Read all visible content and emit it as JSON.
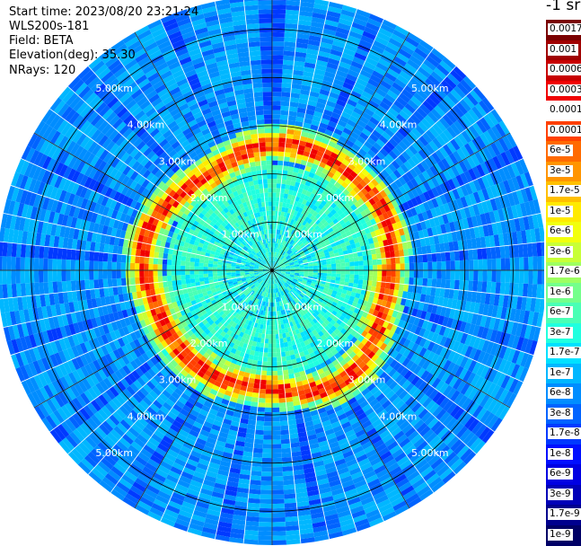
{
  "header": {
    "start_time": "Start time: 2023/08/20 23:21:24",
    "instrument": "WLS200s-181",
    "field": "Field: BETA",
    "elevation": "Elevation(deg): 35.30",
    "nrays": "NRays: 120"
  },
  "colorbar": {
    "unit_label": "-1 sr",
    "ticks": [
      "0.0017",
      "0.001",
      "0.0006",
      "0.0003",
      "0.00017",
      "0.0001",
      "6e-5",
      "3e-5",
      "1.7e-5",
      "1e-5",
      "6e-6",
      "3e-6",
      "1.7e-6",
      "1e-6",
      "6e-7",
      "3e-7",
      "1.7e-7",
      "1e-7",
      "6e-8",
      "3e-8",
      "1.7e-8",
      "1e-8",
      "6e-9",
      "3e-9",
      "1.7e-9",
      "1e-9"
    ],
    "colors": [
      "#7a0000",
      "#a00000",
      "#c80000",
      "#f00000",
      "#ffffff",
      "#ff4000",
      "#ff6a00",
      "#ff9500",
      "#ffbf00",
      "#ffea00",
      "#f2ff0d",
      "#c8ff37",
      "#9eff61",
      "#74ff8b",
      "#4affb5",
      "#20ffdf",
      "#00e1ff",
      "#00b7ff",
      "#008dff",
      "#0063ff",
      "#0039ff",
      "#000fff",
      "#0000e2",
      "#0000b8",
      "#00008e",
      "#000066"
    ]
  },
  "chart_data": {
    "type": "heatmap",
    "projection": "polar PPI",
    "rays": 120,
    "range_rings_km": [
      1.0,
      2.0,
      3.0,
      4.0,
      5.0
    ],
    "ring_labels": [
      "1.00km",
      "2.00km",
      "3.00km",
      "4.00km",
      "5.00km"
    ],
    "max_range_km": 5.7,
    "field": "BETA",
    "features": {
      "background_level": "1e-8",
      "ring_echo_level": "3e-5",
      "ring_echo_radius_km": [
        2.4,
        2.7
      ],
      "inner_level": "1e-7"
    }
  }
}
